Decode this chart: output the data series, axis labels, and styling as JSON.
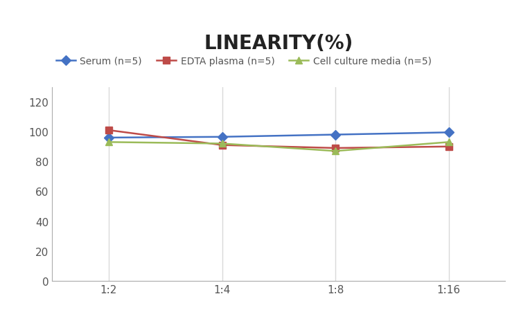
{
  "title": "LINEARITY(%)",
  "x_labels": [
    "1:2",
    "1:4",
    "1:8",
    "1:16"
  ],
  "x_positions": [
    0,
    1,
    2,
    3
  ],
  "series": [
    {
      "name": "Serum (n=5)",
      "values": [
        96,
        96.5,
        98,
        99.5
      ],
      "color": "#4472C4",
      "marker": "D",
      "markersize": 7,
      "linewidth": 1.8
    },
    {
      "name": "EDTA plasma (n=5)",
      "values": [
        101,
        91,
        89,
        90
      ],
      "color": "#BE4B48",
      "marker": "s",
      "markersize": 7,
      "linewidth": 1.8
    },
    {
      "name": "Cell culture media (n=5)",
      "values": [
        93,
        92,
        87,
        93
      ],
      "color": "#9BBB59",
      "marker": "^",
      "markersize": 7,
      "linewidth": 1.8
    }
  ],
  "ylim": [
    0,
    130
  ],
  "yticks": [
    0,
    20,
    40,
    60,
    80,
    100,
    120
  ],
  "grid_color": "#D9D9D9",
  "background_color": "#FFFFFF",
  "title_fontsize": 20,
  "title_fontweight": "bold",
  "legend_fontsize": 10,
  "tick_fontsize": 11,
  "figure_width": 7.52,
  "figure_height": 4.52,
  "dpi": 100
}
